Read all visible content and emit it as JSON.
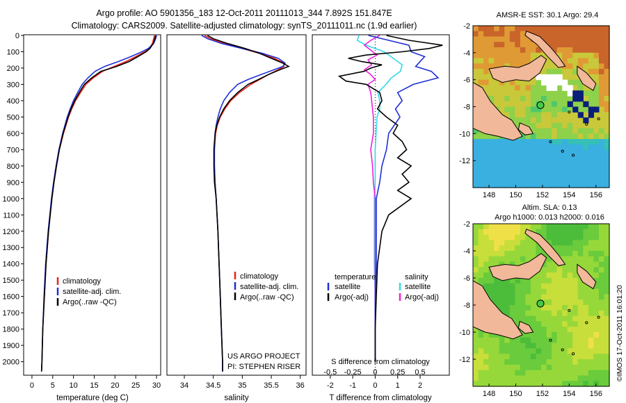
{
  "header": {
    "line1": "Argo profile: AO 5901356_183 12-Oct-2011 20111013_344 7.892S 151.847E",
    "line2": "Climatology: CARS2009. Satellite-adjusted climatology: synTS_20111011.nc (1.9d earlier)"
  },
  "colors": {
    "climatology": "#e8221b",
    "satellite": "#1f2fd6",
    "argo": "#000000",
    "sal_satellite": "#33d8e8",
    "sal_argo": "#ee22dd",
    "land": "#f2b89a"
  },
  "depth_axis": {
    "ticks": [
      0,
      100,
      200,
      300,
      400,
      500,
      600,
      700,
      800,
      900,
      1000,
      1100,
      1200,
      1300,
      1400,
      1500,
      1600,
      1700,
      1800,
      1900,
      2000
    ],
    "tick_labels": [
      "0",
      "100",
      "200",
      "300",
      "400",
      "500",
      "600",
      "700",
      "800",
      "900",
      "1000",
      "1100",
      "1200",
      "1300",
      "1400",
      "1500",
      "1600",
      "1700",
      "1800",
      "1900",
      "2000"
    ]
  },
  "chart_data": [
    {
      "type": "line",
      "panel": "temperature",
      "xlabel": "temperature (deg C)",
      "xlim": [
        -2,
        31
      ],
      "ylim": [
        2070,
        0
      ],
      "x_ticks": [
        0,
        5,
        10,
        15,
        20,
        25,
        30
      ],
      "x_tick_labels": [
        "0",
        "5",
        "10",
        "15",
        "20",
        "25",
        "30"
      ],
      "depth": [
        0,
        20,
        50,
        80,
        100,
        130,
        160,
        190,
        220,
        260,
        300,
        350,
        400,
        450,
        500,
        600,
        700,
        800,
        900,
        1000,
        1200,
        1400,
        1600,
        1800,
        2000,
        2060
      ],
      "series": [
        {
          "name": "climatology",
          "values": [
            29.5,
            29.3,
            29.0,
            28.2,
            27.2,
            25.0,
            22.6,
            19.8,
            17.0,
            14.8,
            13.0,
            11.7,
            10.5,
            9.6,
            8.8,
            7.6,
            6.6,
            5.9,
            5.3,
            4.8,
            4.0,
            3.4,
            3.0,
            2.6,
            2.4,
            2.3
          ]
        },
        {
          "name": "satellite-adj. clim.",
          "values": [
            30.0,
            29.8,
            29.3,
            28.0,
            26.5,
            23.8,
            20.8,
            17.5,
            15.2,
            13.5,
            12.1,
            11.0,
            10.0,
            9.2,
            8.5,
            7.4,
            6.5,
            5.8,
            5.2,
            4.7,
            3.9,
            3.3,
            2.9,
            2.6,
            2.4,
            2.3
          ]
        },
        {
          "name": "Argo(..raw -QC)",
          "values": [
            29.8,
            29.6,
            29.2,
            28.4,
            27.5,
            25.5,
            23.4,
            20.4,
            16.6,
            14.4,
            12.6,
            11.4,
            10.3,
            9.4,
            8.7,
            7.5,
            6.6,
            5.9,
            5.3,
            4.8,
            4.0,
            3.4,
            3.0,
            2.6,
            2.4,
            2.3
          ]
        }
      ],
      "legend": [
        "climatology",
        "satellite-adj. clim.",
        "Argo(..raw -QC)"
      ]
    },
    {
      "type": "line",
      "panel": "salinity",
      "xlabel": "salinity",
      "xlim": [
        33.7,
        36.1
      ],
      "ylim": [
        2070,
        0
      ],
      "x_ticks": [
        34,
        34.5,
        35,
        35.5,
        36
      ],
      "x_tick_labels": [
        "34",
        "34.5",
        "35",
        "35.5",
        "36"
      ],
      "depth": [
        0,
        20,
        50,
        80,
        110,
        140,
        170,
        190,
        210,
        240,
        270,
        300,
        350,
        400,
        450,
        500,
        550,
        600,
        700,
        800,
        900,
        1000,
        1200,
        1400,
        1600,
        1800,
        2000,
        2060
      ],
      "series": [
        {
          "name": "climatology",
          "values": [
            34.35,
            34.45,
            34.7,
            35.0,
            35.3,
            35.55,
            35.72,
            35.72,
            35.62,
            35.45,
            35.3,
            35.15,
            34.95,
            34.8,
            34.7,
            34.62,
            34.57,
            34.54,
            34.52,
            34.52,
            34.53,
            34.55,
            34.58,
            34.6,
            34.62,
            34.64,
            34.66,
            34.66
          ]
        },
        {
          "name": "satellite-adj. clim.",
          "values": [
            34.3,
            34.4,
            34.65,
            35.0,
            35.35,
            35.62,
            35.74,
            35.7,
            35.55,
            35.32,
            35.1,
            34.92,
            34.78,
            34.68,
            34.62,
            34.58,
            34.55,
            34.53,
            34.52,
            34.52,
            34.53,
            34.55,
            34.58,
            34.6,
            34.62,
            34.64,
            34.66,
            34.66
          ]
        },
        {
          "name": "Argo(..raw -QC)",
          "values": [
            34.4,
            34.5,
            34.75,
            35.05,
            35.3,
            35.5,
            35.7,
            35.8,
            35.65,
            35.45,
            35.28,
            35.1,
            34.92,
            34.78,
            34.68,
            34.61,
            34.56,
            34.53,
            34.51,
            34.51,
            34.52,
            34.55,
            34.58,
            34.6,
            34.62,
            34.64,
            34.66,
            34.66
          ]
        }
      ],
      "legend": [
        "climatology",
        "satellite-adj. clim.",
        "Argo(..raw -QC)"
      ],
      "annotation": [
        "US ARGO PROJECT",
        "PI: STEPHEN RISER"
      ]
    },
    {
      "type": "line",
      "panel": "difference",
      "xlabel": "T difference from climatology",
      "xlabel_top": "S difference from climatology",
      "xlim": [
        -2.8,
        3.3
      ],
      "ylim": [
        2070,
        0
      ],
      "x_ticks": [
        -2,
        -1,
        0,
        1,
        2
      ],
      "x_tick_labels": [
        "-2",
        "-1",
        "0",
        "1",
        "2"
      ],
      "s_ticks": [
        -0.5,
        -0.25,
        0,
        0.25,
        0.5
      ],
      "s_tick_labels": [
        "-0.5",
        "-0.25",
        "0",
        "0.25",
        "0.5"
      ],
      "s_scale": 4,
      "t_series": [
        {
          "name": "satellite",
          "depth": [
            0,
            30,
            60,
            100,
            130,
            160,
            190,
            220,
            260,
            300,
            350,
            400,
            450,
            500,
            600,
            700,
            800,
            900,
            1000,
            1200,
            1400,
            1600,
            1800,
            2000
          ],
          "values": [
            -0.3,
            0.6,
            1.5,
            1.6,
            2.2,
            2.0,
            1.8,
            2.5,
            2.8,
            1.7,
            1.0,
            1.2,
            0.9,
            1.1,
            0.6,
            0.5,
            0.3,
            0.2,
            0.05,
            0.05,
            0.05,
            0.0,
            0.0,
            0.0
          ]
        },
        {
          "name": "Argo(-adj)",
          "depth": [
            0,
            30,
            60,
            80,
            100,
            120,
            140,
            160,
            180,
            200,
            220,
            250,
            280,
            300,
            350,
            400,
            450,
            500,
            550,
            600,
            650,
            700,
            750,
            800,
            850,
            900,
            950,
            1000,
            1100,
            1200,
            1400,
            1600,
            1800,
            2000
          ],
          "values": [
            0.5,
            1.5,
            3.0,
            2.4,
            1.2,
            -0.4,
            -1.2,
            -0.6,
            0.3,
            -0.2,
            -0.5,
            -1.6,
            -1.3,
            -0.4,
            0.2,
            0.3,
            0.1,
            0.5,
            1.0,
            0.8,
            1.2,
            1.4,
            1.0,
            1.6,
            1.2,
            1.5,
            1.0,
            1.6,
            0.6,
            0.3,
            0.1,
            0.05,
            0.0,
            0.0
          ]
        }
      ],
      "s_series": [
        {
          "name": "satellite",
          "depth": [
            0,
            30,
            60,
            100,
            140,
            180,
            220,
            260,
            300,
            350,
            400,
            450,
            500,
            600,
            700,
            800,
            900,
            1000,
            1200,
            1400,
            1600,
            1800,
            2000
          ],
          "values": [
            -0.18,
            -0.2,
            -0.1,
            0.1,
            0.2,
            0.3,
            0.28,
            0.18,
            0.12,
            0.03,
            0.05,
            0.05,
            0.02,
            0.01,
            0.0,
            0.0,
            0.0,
            -0.01,
            -0.01,
            -0.01,
            0.0,
            0.0,
            0.0
          ]
        },
        {
          "name": "Argo(-adj)",
          "depth": [
            0,
            30,
            60,
            90,
            120,
            150,
            180,
            210,
            240,
            270,
            300,
            350,
            400,
            500,
            600,
            700,
            800,
            900,
            1000,
            1200,
            1400,
            1600,
            1800,
            2000
          ],
          "values": [
            0.05,
            -0.05,
            -0.12,
            -0.05,
            0.02,
            -0.08,
            -0.04,
            -0.12,
            -0.05,
            0.0,
            -0.08,
            -0.05,
            -0.04,
            -0.02,
            -0.02,
            -0.05,
            -0.03,
            -0.02,
            0.0,
            0.0,
            0.0,
            0.0,
            0.0,
            0.0
          ]
        }
      ],
      "legend_t_title": "temperature",
      "legend_s_title": "salinity",
      "legend_t": [
        "satellite",
        "Argo(-adj)"
      ],
      "legend_s": [
        "satellite",
        "Argo(-adj)"
      ]
    }
  ],
  "maps": {
    "sst": {
      "title": "AMSR-E SST: 30.1  Argo: 29.4",
      "x_ticks": [
        148,
        150,
        152,
        154,
        156
      ],
      "x_tick_labels": [
        "148",
        "150",
        "152",
        "154",
        "156"
      ],
      "y_ticks": [
        -2,
        -4,
        -6,
        -8,
        -10,
        -12
      ],
      "y_tick_labels": [
        "-2",
        "-4",
        "-6",
        "-8",
        "-10",
        "-12"
      ],
      "xlim": [
        146.8,
        157.0
      ],
      "ylim": [
        -14.0,
        -2.0
      ],
      "argo_lon": 151.847,
      "argo_lat": -7.892
    },
    "sla": {
      "title_line1": "Altim. SLA: 0.13",
      "title_line2": "Argo h1000: 0.013 h2000: 0.016",
      "x_ticks": [
        148,
        150,
        152,
        154,
        156
      ],
      "x_tick_labels": [
        "148",
        "150",
        "152",
        "154",
        "156"
      ],
      "y_ticks": [
        -2,
        -4,
        -6,
        -8,
        -10,
        -12
      ],
      "y_tick_labels": [
        "-2",
        "-4",
        "-6",
        "-8",
        "-10",
        "-12"
      ],
      "xlim": [
        146.8,
        157.0
      ],
      "ylim": [
        -14.0,
        -2.0
      ],
      "argo_lon": 151.847,
      "argo_lat": -7.892
    }
  },
  "footer_stamp": "©IMOS 17-Oct-2011 16:01:20"
}
